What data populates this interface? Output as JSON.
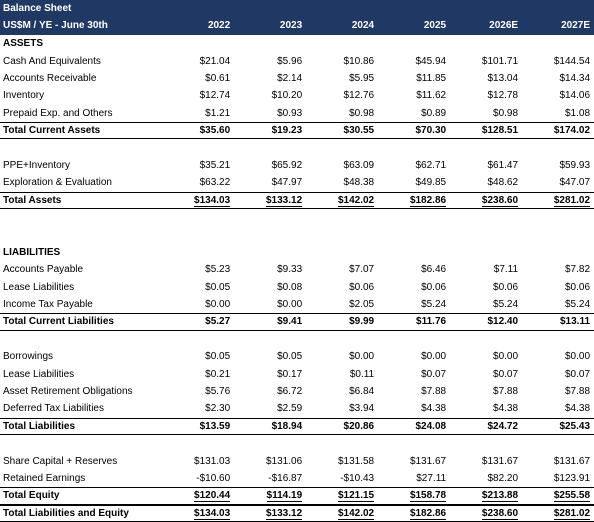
{
  "title": "Balance Sheet",
  "header": {
    "label": "US$M / YE - June 30th",
    "years": [
      "2022",
      "2023",
      "2024",
      "2025",
      "2026E",
      "2027E"
    ]
  },
  "rows": [
    {
      "type": "section",
      "label": "ASSETS"
    },
    {
      "type": "line",
      "label": "Cash And Equivalents",
      "values": [
        "$21.04",
        "$5.96",
        "$10.86",
        "$45.94",
        "$101.71",
        "$144.54"
      ]
    },
    {
      "type": "line",
      "label": "Accounts Receivable",
      "values": [
        "$0.61",
        "$2.14",
        "$5.95",
        "$11.85",
        "$13.04",
        "$14.34"
      ]
    },
    {
      "type": "line",
      "label": "Inventory",
      "values": [
        "$12.74",
        "$10.20",
        "$12.76",
        "$11.62",
        "$12.78",
        "$14.06"
      ]
    },
    {
      "type": "line",
      "label": "Prepaid Exp. and Others",
      "values": [
        "$1.21",
        "$0.93",
        "$0.98",
        "$0.89",
        "$0.98",
        "$1.08"
      ]
    },
    {
      "type": "total",
      "label": "Total Current Assets",
      "values": [
        "$35.60",
        "$19.23",
        "$30.55",
        "$70.30",
        "$128.51",
        "$174.02"
      ]
    },
    {
      "type": "blank"
    },
    {
      "type": "line",
      "label": "PPE+Inventory",
      "values": [
        "$35.21",
        "$65.92",
        "$63.09",
        "$62.71",
        "$61.47",
        "$59.93"
      ]
    },
    {
      "type": "line",
      "label": "Exploration & Evaluation",
      "values": [
        "$63.22",
        "$47.97",
        "$48.38",
        "$49.85",
        "$48.62",
        "$47.07"
      ]
    },
    {
      "type": "total-emph",
      "label": "Total Assets",
      "values": [
        "$134.03",
        "$133.12",
        "$142.02",
        "$182.86",
        "$238.60",
        "$281.02"
      ]
    },
    {
      "type": "blank"
    },
    {
      "type": "blank"
    },
    {
      "type": "section",
      "label": "LIABILITIES"
    },
    {
      "type": "line",
      "label": "Accounts Payable",
      "values": [
        "$5.23",
        "$9.33",
        "$7.07",
        "$6.46",
        "$7.11",
        "$7.82"
      ]
    },
    {
      "type": "line",
      "label": "Lease Liabilities",
      "values": [
        "$0.05",
        "$0.08",
        "$0.06",
        "$0.06",
        "$0.06",
        "$0.06"
      ]
    },
    {
      "type": "line",
      "label": "Income Tax Payable",
      "values": [
        "$0.00",
        "$0.00",
        "$2.05",
        "$5.24",
        "$5.24",
        "$5.24"
      ]
    },
    {
      "type": "total",
      "label": "Total Current Liabilities",
      "values": [
        "$5.27",
        "$9.41",
        "$9.99",
        "$11.76",
        "$12.40",
        "$13.11"
      ]
    },
    {
      "type": "blank"
    },
    {
      "type": "line",
      "label": "Borrowings",
      "values": [
        "$0.05",
        "$0.05",
        "$0.00",
        "$0.00",
        "$0.00",
        "$0.00"
      ]
    },
    {
      "type": "line",
      "label": "Lease Liabilities",
      "values": [
        "$0.21",
        "$0.17",
        "$0.11",
        "$0.07",
        "$0.07",
        "$0.07"
      ]
    },
    {
      "type": "line",
      "label": "Asset Retirement Obligations",
      "values": [
        "$5.76",
        "$6.72",
        "$6.84",
        "$7.88",
        "$7.88",
        "$7.88"
      ]
    },
    {
      "type": "line",
      "label": "Deferred Tax Liabilities",
      "values": [
        "$2.30",
        "$2.59",
        "$3.94",
        "$4.38",
        "$4.38",
        "$4.38"
      ]
    },
    {
      "type": "total",
      "label": "Total Liabilities",
      "values": [
        "$13.59",
        "$18.94",
        "$20.86",
        "$24.08",
        "$24.72",
        "$25.43"
      ]
    },
    {
      "type": "blank"
    },
    {
      "type": "line",
      "label": "Share Capital + Reserves",
      "values": [
        "$131.03",
        "$131.06",
        "$131.58",
        "$131.67",
        "$131.67",
        "$131.67"
      ]
    },
    {
      "type": "line",
      "label": "Retained Earnings",
      "values": [
        "-$10.60",
        "-$16.87",
        "-$10.43",
        "$27.11",
        "$82.20",
        "$123.91"
      ]
    },
    {
      "type": "total-emph",
      "label": "Total Equity",
      "values": [
        "$120.44",
        "$114.19",
        "$121.15",
        "$158.78",
        "$213.88",
        "$255.58"
      ]
    },
    {
      "type": "total-emph",
      "label": "Total Liabilities and Equity",
      "values": [
        "$134.03",
        "$133.12",
        "$142.02",
        "$182.86",
        "$238.60",
        "$281.02"
      ]
    }
  ]
}
